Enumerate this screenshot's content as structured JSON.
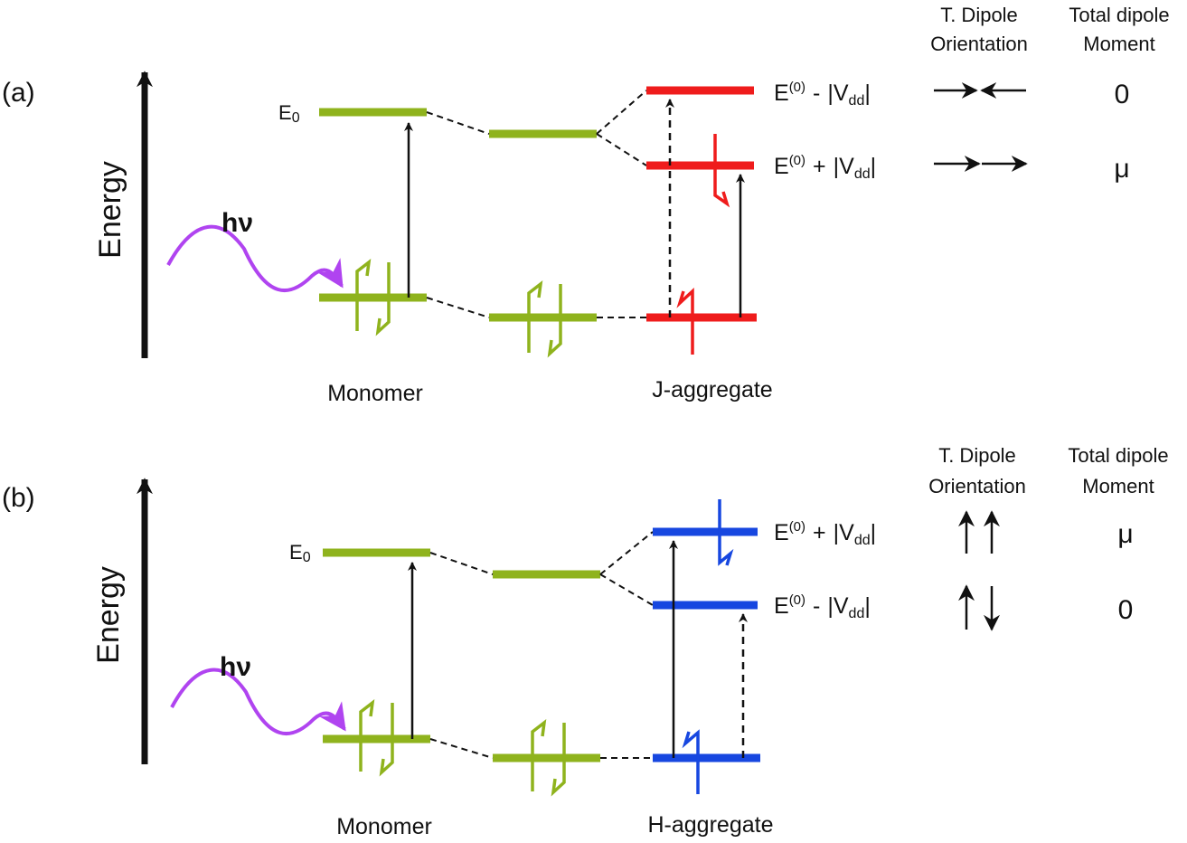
{
  "colors": {
    "monomer": "#8fb31d",
    "j_aggregate": "#ef1c1c",
    "h_aggregate": "#1747e0",
    "photon": "#b044f0",
    "axis": "#111111"
  },
  "axis_label": "Energy",
  "photon_label": "hν",
  "e0_prefix": "E",
  "e0_subscript": "0",
  "state_prefix": "E",
  "state_superscript": "(0)",
  "vdd_prefix": "V",
  "vdd_subscript": "dd",
  "header_dipole_orientation": [
    "T. Dipole",
    "Orientation"
  ],
  "header_total_dipole": [
    "Total dipole",
    "Moment"
  ],
  "panels": [
    {
      "panel_label": "(a)",
      "left_caption": "Monomer",
      "right_caption": "J-aggregate",
      "states": [
        {
          "sign": "-",
          "moment": "0"
        },
        {
          "sign": "+",
          "moment": "μ"
        }
      ]
    },
    {
      "panel_label": "(b)",
      "left_caption": "Monomer",
      "right_caption": "H-aggregate",
      "states": [
        {
          "sign": "+",
          "moment": "μ"
        },
        {
          "sign": "-",
          "moment": "0"
        }
      ]
    }
  ]
}
